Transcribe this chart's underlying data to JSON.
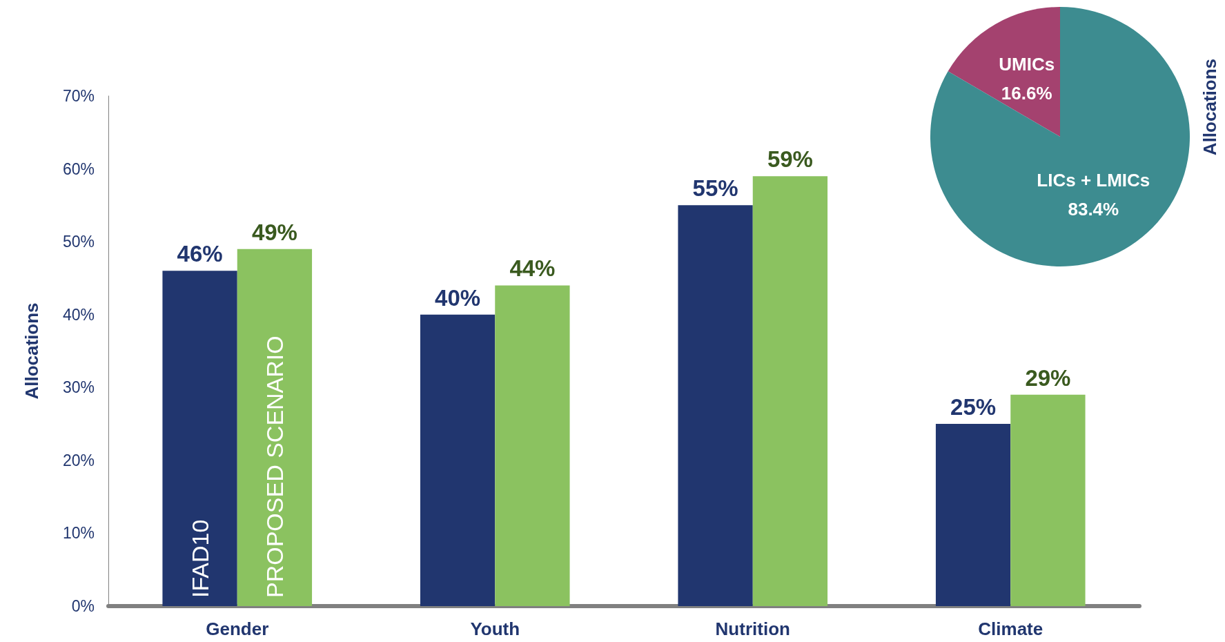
{
  "chart_data": [
    {
      "type": "bar",
      "ylabel": "Allocations",
      "categories": [
        "Gender",
        "Youth",
        "Nutrition",
        "Climate"
      ],
      "series": [
        {
          "name": "IFAD10",
          "color": "#21366f",
          "values": [
            46,
            40,
            55,
            25
          ],
          "value_labels": [
            "46%",
            "40%",
            "55%",
            "25%"
          ]
        },
        {
          "name": "PROPOSED SCENARIO",
          "color": "#8bc260",
          "values": [
            49,
            44,
            59,
            29
          ],
          "value_labels": [
            "49%",
            "44%",
            "59%",
            "29%"
          ]
        }
      ],
      "ylim": [
        0,
        70
      ],
      "yticks": [
        {
          "value": 0,
          "label": "0%"
        },
        {
          "value": 10,
          "label": "10%"
        },
        {
          "value": 20,
          "label": "20%"
        },
        {
          "value": 30,
          "label": "30%"
        },
        {
          "value": 40,
          "label": "40%"
        },
        {
          "value": 50,
          "label": "50%"
        },
        {
          "value": 60,
          "label": "60%"
        },
        {
          "value": 70,
          "label": "70%"
        }
      ],
      "grid": false,
      "legend": false
    },
    {
      "type": "pie",
      "ylabel": "Allocations",
      "categories": [
        "UMICs",
        "LICs + LMICs"
      ],
      "values": [
        16.6,
        83.4
      ],
      "colors": [
        "#a4426f",
        "#3d8c90"
      ],
      "value_labels": [
        "16.6%",
        "83.4%"
      ],
      "legend": false
    }
  ]
}
